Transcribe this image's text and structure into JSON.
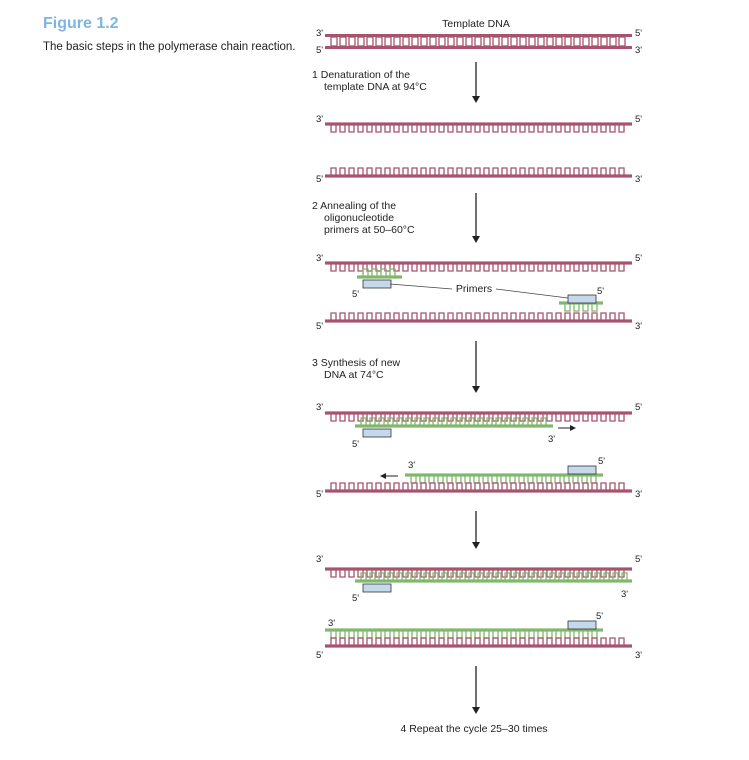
{
  "figure": {
    "title": "Figure 1.2",
    "caption": "The basic steps in the polymerase chain reaction."
  },
  "diagram": {
    "top_label": "Template DNA",
    "steps": [
      {
        "number": "1",
        "lines": [
          "Denaturation of the",
          "template DNA at 94°C"
        ]
      },
      {
        "number": "2",
        "lines": [
          "Annealing of the",
          "oligonucleotide",
          "primers at 50–60°C"
        ]
      },
      {
        "number": "3",
        "lines": [
          "Synthesis of new",
          "DNA at 74°C"
        ]
      },
      {
        "number": "4",
        "lines": [
          "Repeat the cycle 25–30 times"
        ]
      }
    ],
    "primers_label": "Primers",
    "end_3": "3'",
    "end_5": "5'",
    "colors": {
      "template": "#a8536e",
      "template_inner": "#e8c9d3",
      "new_strand": "#7fb86a",
      "primer_box": "#c5d9ec",
      "arrow": "#222222"
    }
  }
}
